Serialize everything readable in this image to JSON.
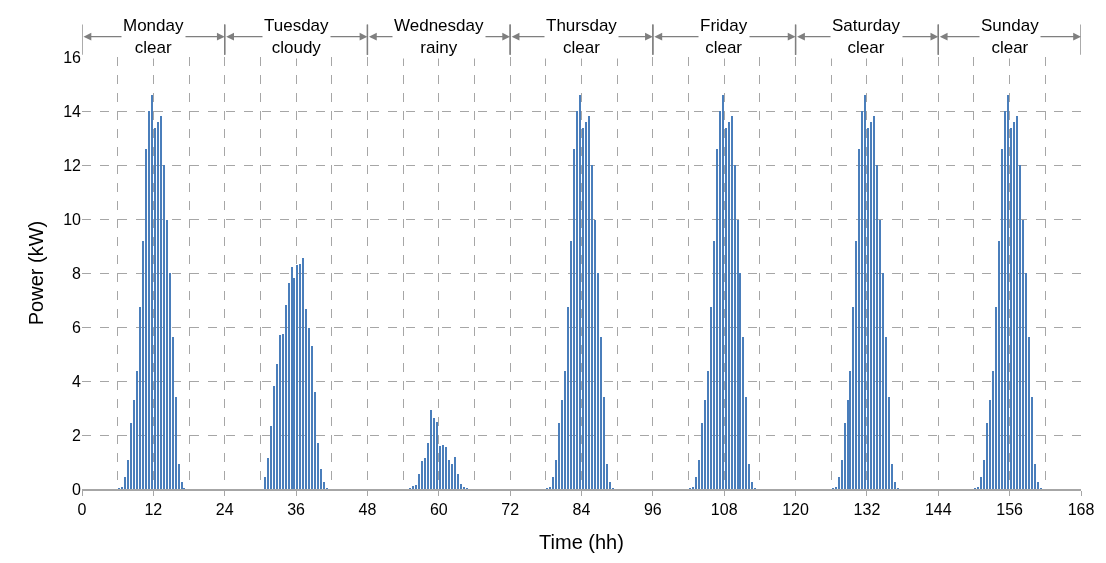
{
  "chart_data": {
    "type": "bar",
    "xlabel": "Time (hh)",
    "ylabel": "Power (kW)",
    "x": [
      6.25,
      6.75,
      7.25,
      7.75,
      8.25,
      8.75,
      9.25,
      9.75,
      10.25,
      10.75,
      11.25,
      11.75,
      12.25,
      12.75,
      13.25,
      13.75,
      14.25,
      14.75,
      15.25,
      15.75,
      16.25,
      16.75,
      17.25,
      30.75,
      31.25,
      31.75,
      32.25,
      32.75,
      33.25,
      33.75,
      34.25,
      34.75,
      35.25,
      35.75,
      36.25,
      36.75,
      37.25,
      37.75,
      38.25,
      38.75,
      39.25,
      39.75,
      40.25,
      40.75,
      41.25,
      55.25,
      55.75,
      56.25,
      56.75,
      57.25,
      57.75,
      58.25,
      58.75,
      59.25,
      59.75,
      60.25,
      60.75,
      61.25,
      61.75,
      62.25,
      62.75,
      63.25,
      63.75,
      64.25,
      64.75,
      78.25,
      78.75,
      79.25,
      79.75,
      80.25,
      80.75,
      81.25,
      81.75,
      82.25,
      82.75,
      83.25,
      83.75,
      84.25,
      84.75,
      85.25,
      85.75,
      86.25,
      86.75,
      87.25,
      87.75,
      88.25,
      88.75,
      89.25,
      102.25,
      102.75,
      103.25,
      103.75,
      104.25,
      104.75,
      105.25,
      105.75,
      106.25,
      106.75,
      107.25,
      107.75,
      108.25,
      108.75,
      109.25,
      109.75,
      110.25,
      110.75,
      111.25,
      111.75,
      112.25,
      112.75,
      113.25,
      126.25,
      126.75,
      127.25,
      127.75,
      128.25,
      128.75,
      129.25,
      129.75,
      130.25,
      130.75,
      131.25,
      131.75,
      132.25,
      132.75,
      133.25,
      133.75,
      134.25,
      134.75,
      135.25,
      135.75,
      136.25,
      136.75,
      137.25,
      150.25,
      150.75,
      151.25,
      151.75,
      152.25,
      152.75,
      153.25,
      153.75,
      154.25,
      154.75,
      155.25,
      155.75,
      156.25,
      156.75,
      157.25,
      157.75,
      158.25,
      158.75,
      159.25,
      159.75,
      160.25,
      160.75,
      161.25
    ],
    "values": [
      0.01,
      0.06,
      0.46,
      1.09,
      2.46,
      3.3,
      4.38,
      6.75,
      9.17,
      12.6,
      14.0,
      14.6,
      13.36,
      13.6,
      13.83,
      12.0,
      9.96,
      8.0,
      5.62,
      3.42,
      0.93,
      0.25,
      0.02,
      0.43,
      1.14,
      2.33,
      3.8,
      4.64,
      5.7,
      5.74,
      6.8,
      7.64,
      8.21,
      7.8,
      8.3,
      8.33,
      8.56,
      6.67,
      5.96,
      5.3,
      3.58,
      1.69,
      0.74,
      0.25,
      0.03,
      0.02,
      0.1,
      0.16,
      0.56,
      1.05,
      1.15,
      1.7,
      2.92,
      2.63,
      2.49,
      1.58,
      1.64,
      1.57,
      1.08,
      0.94,
      1.18,
      0.56,
      0.2,
      0.05,
      0.02,
      0.01,
      0.06,
      0.46,
      1.09,
      2.46,
      3.3,
      4.38,
      6.75,
      9.17,
      12.6,
      14.0,
      14.6,
      13.36,
      13.6,
      13.83,
      12.0,
      9.96,
      8.0,
      5.62,
      3.42,
      0.93,
      0.25,
      0.02,
      0.01,
      0.06,
      0.46,
      1.09,
      2.46,
      3.3,
      4.38,
      6.75,
      9.17,
      12.6,
      14.0,
      14.6,
      13.36,
      13.6,
      13.83,
      12.0,
      9.96,
      8.0,
      5.62,
      3.42,
      0.93,
      0.25,
      0.02,
      0.01,
      0.06,
      0.46,
      1.09,
      2.46,
      3.3,
      4.38,
      6.75,
      9.17,
      12.6,
      14.0,
      14.6,
      13.36,
      13.6,
      13.83,
      12.0,
      9.96,
      8.0,
      5.62,
      3.42,
      0.93,
      0.25,
      0.02,
      0.01,
      0.06,
      0.46,
      1.09,
      2.46,
      3.3,
      4.38,
      6.75,
      9.17,
      12.6,
      14.0,
      14.6,
      13.36,
      13.6,
      13.83,
      12.0,
      9.96,
      8.0,
      5.62,
      3.42,
      0.93,
      0.25,
      0.02
    ],
    "color": "#4a7ebb",
    "xlim": [
      0,
      168
    ],
    "xticks": [
      0,
      12,
      24,
      36,
      48,
      60,
      72,
      84,
      96,
      108,
      120,
      132,
      144,
      156,
      168
    ],
    "ylim": [
      0,
      16
    ],
    "yticks": [
      0,
      2,
      4,
      6,
      8,
      10,
      12,
      14,
      16
    ],
    "grid": true,
    "annotations": [
      "Monday\nclear",
      "Tuesday\ncloudy",
      "Wednesday\nrainy",
      "Thursday\nclear",
      "Friday\nclear",
      "Saturday\nclear",
      "Sunday\nclear"
    ]
  }
}
